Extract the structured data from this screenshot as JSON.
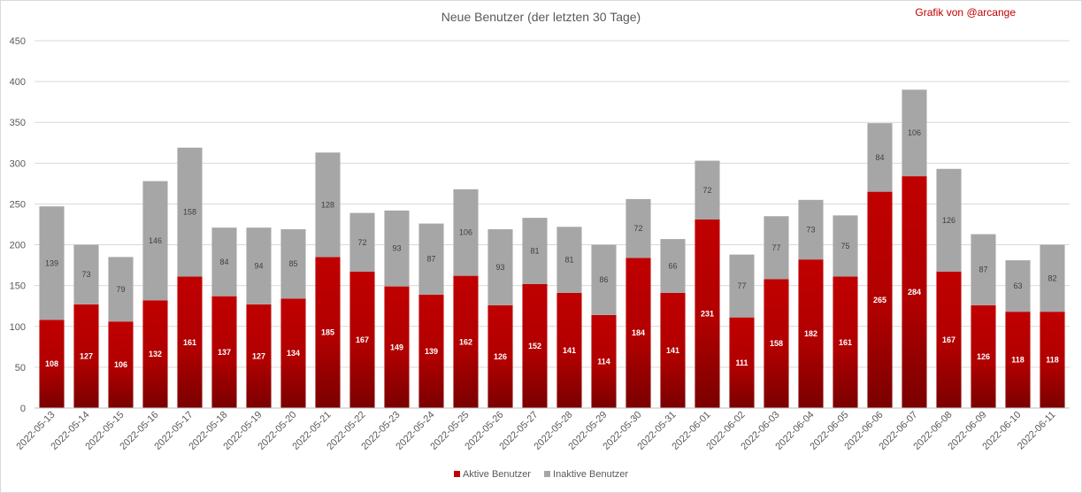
{
  "chart_data": {
    "type": "bar",
    "stacked": true,
    "title": "Neue Benutzer (der letzten 30 Tage)",
    "credit": "Grafik von @arcange",
    "xlabel": "",
    "ylabel": "",
    "ylim": [
      0,
      450
    ],
    "yticks": [
      0,
      50,
      100,
      150,
      200,
      250,
      300,
      350,
      400,
      450
    ],
    "grid": true,
    "legend_position": "bottom",
    "categories": [
      "2022-05-13",
      "2022-05-14",
      "2022-05-15",
      "2022-05-16",
      "2022-05-17",
      "2022-05-18",
      "2022-05-19",
      "2022-05-20",
      "2022-05-21",
      "2022-05-22",
      "2022-05-23",
      "2022-05-24",
      "2022-05-25",
      "2022-05-26",
      "2022-05-27",
      "2022-05-28",
      "2022-05-29",
      "2022-05-30",
      "2022-05-31",
      "2022-06-01",
      "2022-06-02",
      "2022-06-03",
      "2022-06-04",
      "2022-06-05",
      "2022-06-06",
      "2022-06-07",
      "2022-06-08",
      "2022-06-09",
      "2022-06-10",
      "2022-06-11"
    ],
    "series": [
      {
        "name": "Aktive Benutzer",
        "color": "#c00000",
        "color_dark": "#7a0000",
        "values": [
          108,
          127,
          106,
          132,
          161,
          137,
          127,
          134,
          185,
          167,
          149,
          139,
          162,
          126,
          152,
          141,
          114,
          184,
          141,
          231,
          111,
          158,
          182,
          161,
          265,
          284,
          167,
          126,
          118,
          118
        ]
      },
      {
        "name": "Inaktive Benutzer",
        "color": "#a6a6a6",
        "values": [
          139,
          73,
          79,
          146,
          158,
          84,
          94,
          85,
          128,
          72,
          93,
          87,
          106,
          93,
          81,
          81,
          86,
          72,
          66,
          72,
          77,
          77,
          73,
          75,
          84,
          106,
          126,
          87,
          63,
          82
        ]
      }
    ]
  }
}
